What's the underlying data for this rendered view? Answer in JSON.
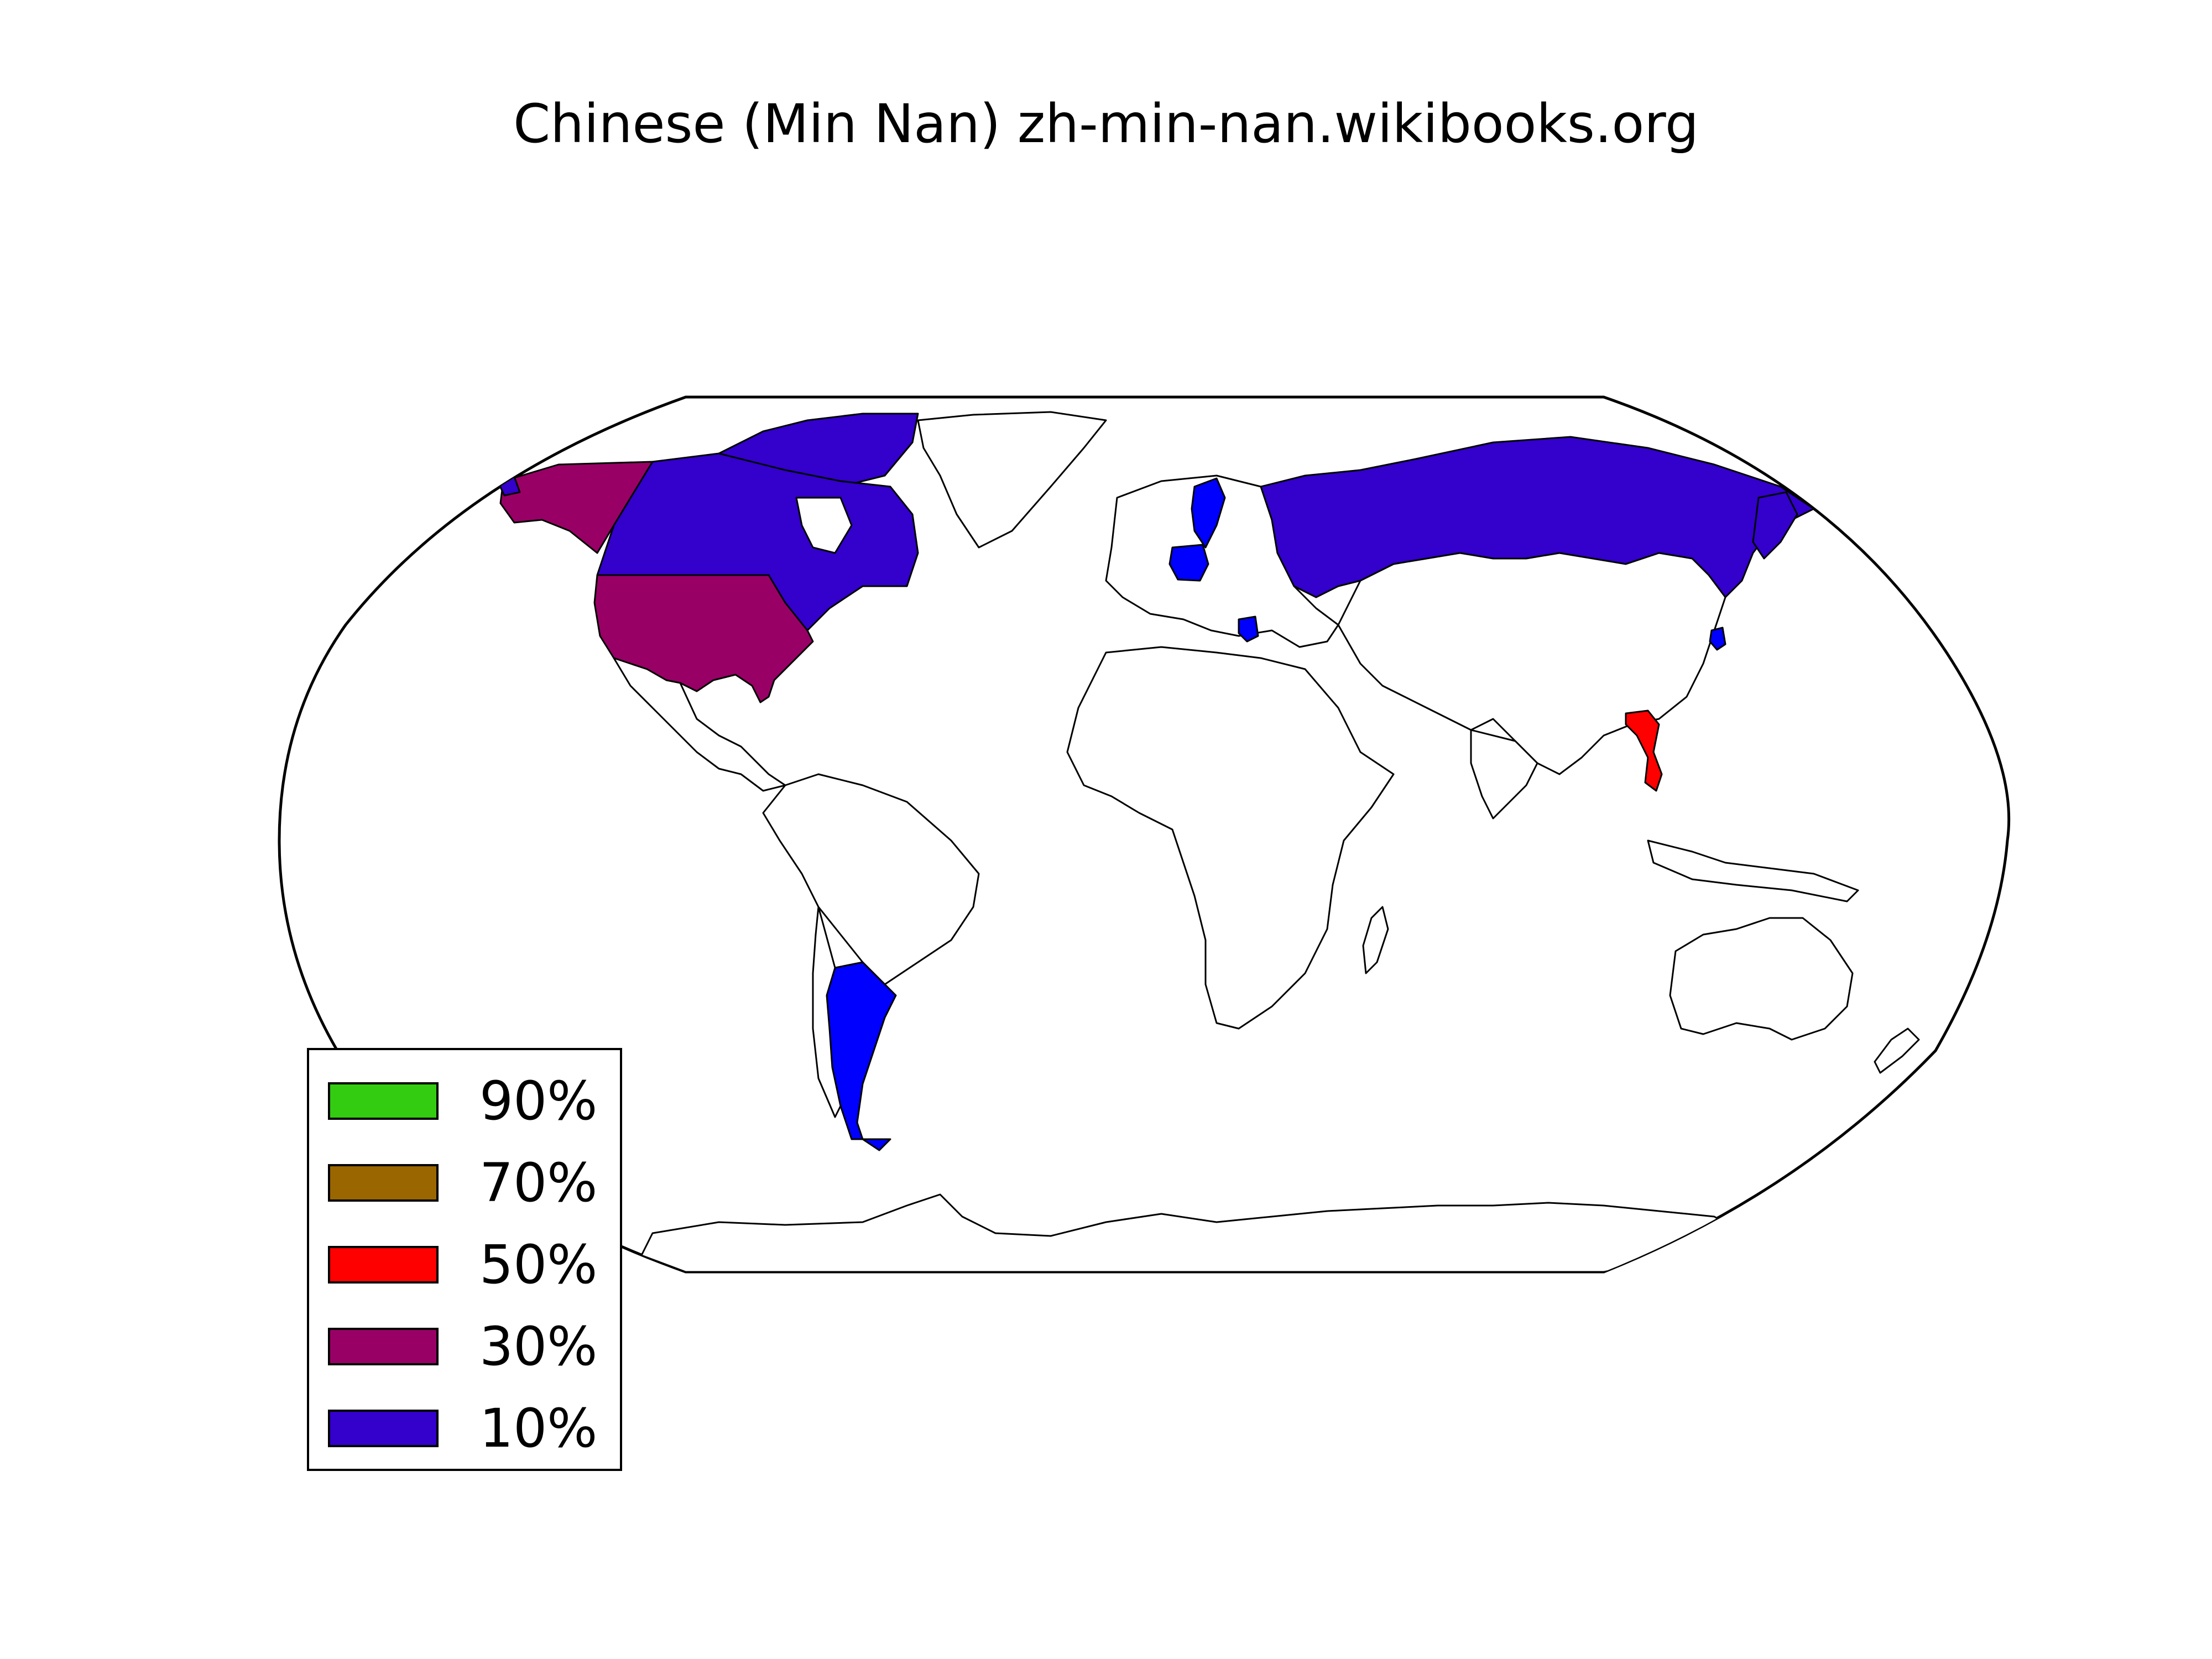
{
  "title": "Chinese (Min Nan) zh-min-nan.wikibooks.org",
  "legend": [
    {
      "label": "90%",
      "color": "#33cc11"
    },
    {
      "label": "70%",
      "color": "#996600"
    },
    {
      "label": "50%",
      "color": "#ff0000"
    },
    {
      "label": "30%",
      "color": "#990066"
    },
    {
      "label": "10%",
      "color": "#3300cc"
    }
  ],
  "chart_data": {
    "type": "choropleth",
    "title": "Chinese (Min Nan) zh-min-nan.wikibooks.org",
    "legend": [
      "90%",
      "70%",
      "50%",
      "30%",
      "10%"
    ],
    "regions": [
      {
        "country": "United States",
        "bin": "30%",
        "color": "#990066"
      },
      {
        "country": "Vietnam",
        "bin": "50%",
        "color": "#ff0000"
      },
      {
        "country": "Canada",
        "bin": "10%",
        "color": "#3300cc"
      },
      {
        "country": "Russia",
        "bin": "10%",
        "color": "#3300cc"
      },
      {
        "country": "Argentina",
        "bin": "10%",
        "color": "#0000ff"
      },
      {
        "country": "Sweden",
        "bin": "10%",
        "color": "#0000ff"
      },
      {
        "country": "Germany",
        "bin": "10%",
        "color": "#0000ff"
      },
      {
        "country": "Greece",
        "bin": "10%",
        "color": "#0000ff"
      },
      {
        "country": "South Korea",
        "bin": "10%",
        "color": "#0000ff"
      }
    ]
  }
}
